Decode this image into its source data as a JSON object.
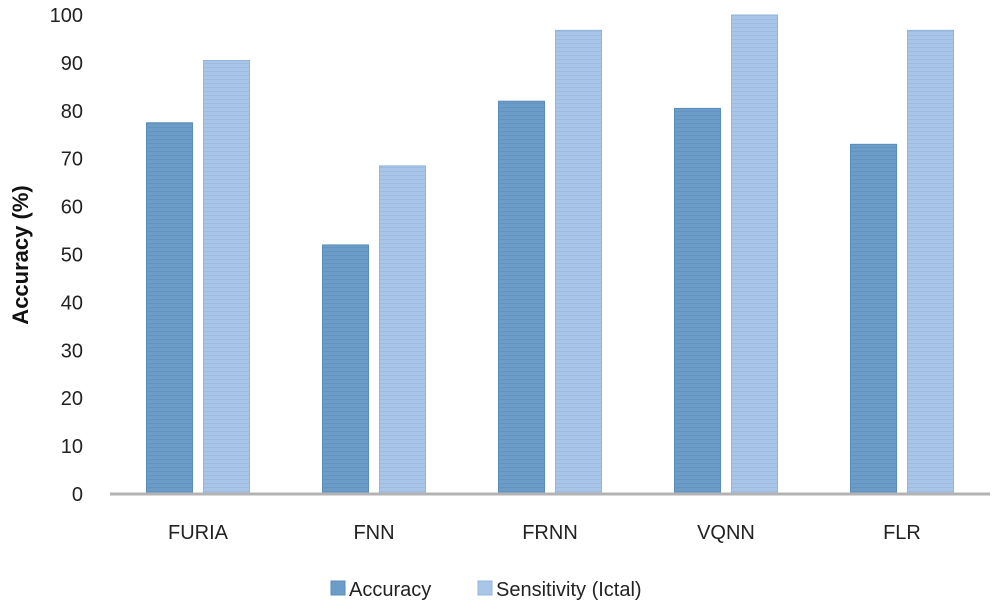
{
  "chart_data": {
    "type": "bar",
    "title": "",
    "xlabel": "",
    "ylabel": "Accuracy (%)",
    "ylim": [
      0,
      100
    ],
    "yticks": [
      "0",
      "10",
      "20",
      "30",
      "40",
      "50",
      "60",
      "70",
      "80",
      "90",
      "100"
    ],
    "categories": [
      "FURIA",
      "FNN",
      "FRNN",
      "VQNN",
      "FLR"
    ],
    "series": [
      {
        "name": "Accuracy",
        "values": [
          77.5,
          52,
          82,
          80.5,
          73
        ],
        "color": "#6c9dc9"
      },
      {
        "name": "Sensitivity (Ictal)",
        "values": [
          90.5,
          68.5,
          96.8,
          100,
          96.8
        ],
        "color": "#a9c6e8"
      }
    ],
    "legend_position": "bottom",
    "grid": false
  }
}
